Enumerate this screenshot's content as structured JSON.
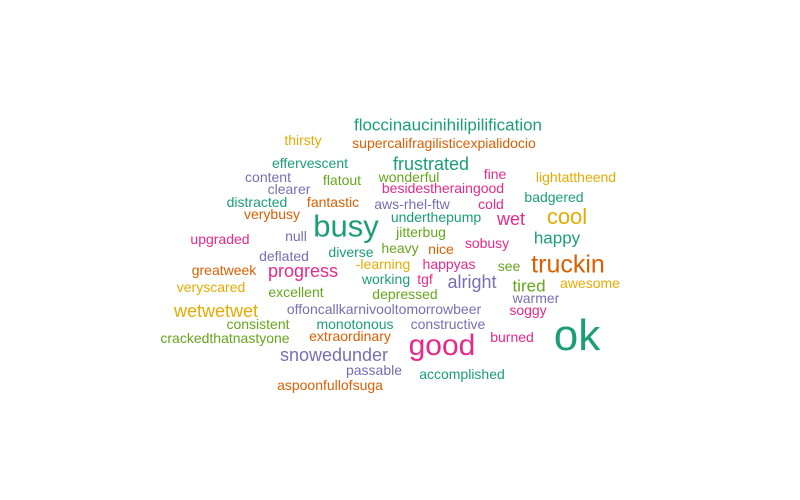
{
  "palette": {
    "teal": "#1b9e77",
    "orange": "#d95f02",
    "purple": "#7570b3",
    "pink": "#e7298a",
    "green": "#66a61e",
    "gold": "#e6ab02"
  },
  "words": [
    {
      "text": "ok",
      "color": "teal"
    },
    {
      "text": "good",
      "color": "pink"
    },
    {
      "text": "busy",
      "color": "teal"
    },
    {
      "text": "truckin",
      "color": "orange"
    },
    {
      "text": "cool",
      "color": "gold"
    },
    {
      "text": "frustrated",
      "color": "teal"
    },
    {
      "text": "wet",
      "color": "pink"
    },
    {
      "text": "happy",
      "color": "teal"
    },
    {
      "text": "progress",
      "color": "pink"
    },
    {
      "text": "alright",
      "color": "purple"
    },
    {
      "text": "snowedunder",
      "color": "purple"
    },
    {
      "text": "wetwetwet",
      "color": "gold"
    },
    {
      "text": "tired",
      "color": "green"
    },
    {
      "text": "floccinaucinihilipilification",
      "color": "teal"
    },
    {
      "text": "supercalifragilisticexpialidocio",
      "color": "orange"
    },
    {
      "text": "thirsty",
      "color": "gold"
    },
    {
      "text": "effervescent",
      "color": "teal"
    },
    {
      "text": "content",
      "color": "purple"
    },
    {
      "text": "flatout",
      "color": "green"
    },
    {
      "text": "wonderful",
      "color": "green"
    },
    {
      "text": "fine",
      "color": "pink"
    },
    {
      "text": "lightattheend",
      "color": "gold"
    },
    {
      "text": "clearer",
      "color": "purple"
    },
    {
      "text": "besidestheraingood",
      "color": "pink"
    },
    {
      "text": "badgered",
      "color": "teal"
    },
    {
      "text": "distracted",
      "color": "teal"
    },
    {
      "text": "fantastic",
      "color": "orange"
    },
    {
      "text": "aws-rhel-ftw",
      "color": "purple"
    },
    {
      "text": "cold",
      "color": "pink"
    },
    {
      "text": "verybusy",
      "color": "orange"
    },
    {
      "text": "underthepump",
      "color": "teal"
    },
    {
      "text": "null",
      "color": "purple"
    },
    {
      "text": "jitterbug",
      "color": "green"
    },
    {
      "text": "upgraded",
      "color": "pink"
    },
    {
      "text": "sobusy",
      "color": "pink"
    },
    {
      "text": "deflated",
      "color": "purple"
    },
    {
      "text": "diverse",
      "color": "teal"
    },
    {
      "text": "heavy",
      "color": "green"
    },
    {
      "text": "nice",
      "color": "orange"
    },
    {
      "text": "-learning",
      "color": "gold"
    },
    {
      "text": "happyas",
      "color": "pink"
    },
    {
      "text": "see",
      "color": "green"
    },
    {
      "text": "greatweek",
      "color": "orange"
    },
    {
      "text": "working",
      "color": "teal"
    },
    {
      "text": "tgf",
      "color": "pink"
    },
    {
      "text": "awesome",
      "color": "gold"
    },
    {
      "text": "veryscared",
      "color": "gold"
    },
    {
      "text": "excellent",
      "color": "green"
    },
    {
      "text": "depressed",
      "color": "green"
    },
    {
      "text": "warmer",
      "color": "purple"
    },
    {
      "text": "offoncallkarnivooltomorrowbeer",
      "color": "purple"
    },
    {
      "text": "soggy",
      "color": "pink"
    },
    {
      "text": "consistent",
      "color": "green"
    },
    {
      "text": "monotonous",
      "color": "teal"
    },
    {
      "text": "constructive",
      "color": "purple"
    },
    {
      "text": "crackedthatnastyone",
      "color": "green"
    },
    {
      "text": "extraordinary",
      "color": "orange"
    },
    {
      "text": "burned",
      "color": "pink"
    },
    {
      "text": "passable",
      "color": "purple"
    },
    {
      "text": "accomplished",
      "color": "teal"
    },
    {
      "text": "aspoonfullofsuga",
      "color": "orange"
    }
  ]
}
